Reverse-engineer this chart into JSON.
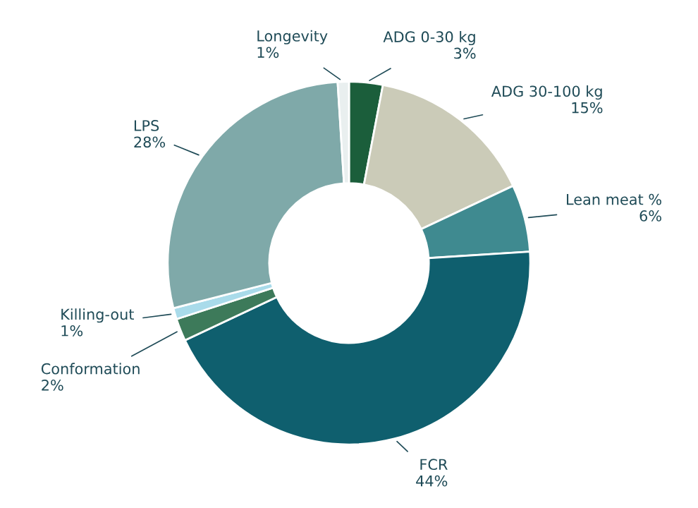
{
  "chart_data": {
    "type": "donut",
    "categories": [
      "ADG 0-30 kg",
      "ADG 30-100 kg",
      "Lean meat %",
      "FCR",
      "Conformation",
      "Killing-out",
      "LPS",
      "Longevity"
    ],
    "values": [
      3,
      15,
      6,
      44,
      2,
      1,
      28,
      1
    ],
    "value_labels": [
      "3%",
      "15%",
      "6%",
      "44%",
      "2%",
      "1%",
      "28%",
      "1%"
    ],
    "colors": [
      "#1b5e3b",
      "#cbcbb8",
      "#3f8a90",
      "#0f5f6e",
      "#3d7a5a",
      "#a9dbea",
      "#7fa9a9",
      "#e9efef"
    ],
    "legend": false
  }
}
